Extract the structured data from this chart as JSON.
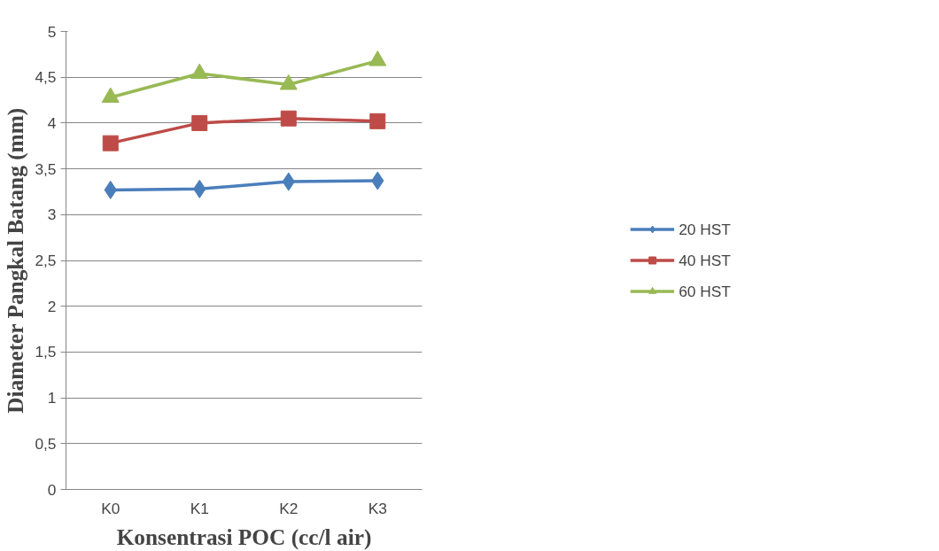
{
  "chart_data": {
    "type": "line",
    "xlabel": "Konsentrasi POC (cc/l air)",
    "ylabel": "Diameter Pangkal Batang (mm)",
    "categories": [
      "K0",
      "K1",
      "K2",
      "K3"
    ],
    "series": [
      {
        "name": "20 HST",
        "color": "#4a7ebb",
        "marker": "diamond",
        "values": [
          3.27,
          3.28,
          3.36,
          3.37
        ]
      },
      {
        "name": "40 HST",
        "color": "#be4b48",
        "marker": "square",
        "values": [
          3.78,
          4.0,
          4.05,
          4.02
        ]
      },
      {
        "name": "60 HST",
        "color": "#98b954",
        "marker": "triangle",
        "values": [
          4.28,
          4.54,
          4.42,
          4.68
        ]
      }
    ],
    "ylim": [
      0,
      5
    ],
    "yticks": [
      0,
      {
        "value": 0.5,
        "label": "0,5"
      },
      1,
      {
        "value": 1.5,
        "label": "1,5"
      },
      2,
      {
        "value": 2.5,
        "label": "2,5"
      },
      3,
      {
        "value": 3.5,
        "label": "3,5"
      },
      4,
      {
        "value": 4.5,
        "label": "4,5"
      },
      5
    ],
    "grid": "y",
    "legend": "right",
    "line_style": "solid"
  }
}
